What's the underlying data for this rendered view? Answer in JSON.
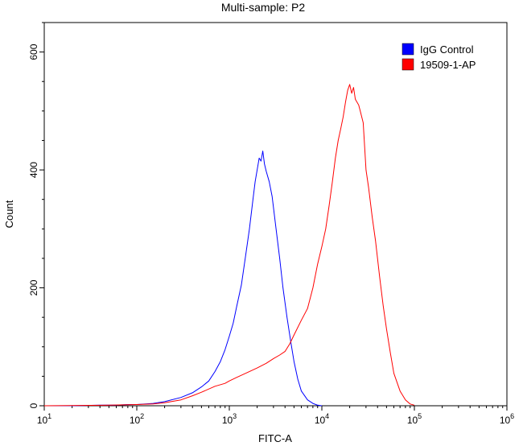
{
  "chart_data": {
    "type": "line",
    "title": "Multi-sample: P2",
    "xlabel": "FITC-A",
    "ylabel": "Count",
    "xscale": "log",
    "xlim": [
      10,
      1000000
    ],
    "ylim": [
      0,
      650
    ],
    "x_ticks": [
      {
        "base": "10",
        "exp": "1",
        "value": 10
      },
      {
        "base": "10",
        "exp": "2",
        "value": 100
      },
      {
        "base": "10",
        "exp": "3",
        "value": 1000
      },
      {
        "base": "10",
        "exp": "4",
        "value": 10000
      },
      {
        "base": "10",
        "exp": "5",
        "value": 100000
      },
      {
        "base": "10",
        "exp": "6",
        "value": 1000000
      }
    ],
    "y_ticks": [
      0,
      200,
      400,
      600
    ],
    "grid": false,
    "legend_position": "top-right",
    "series": [
      {
        "name": "IgG Control",
        "color": "#0000ff",
        "points": [
          [
            10,
            0
          ],
          [
            20,
            0
          ],
          [
            40,
            1
          ],
          [
            60,
            1
          ],
          [
            80,
            2
          ],
          [
            100,
            2
          ],
          [
            150,
            4
          ],
          [
            200,
            7
          ],
          [
            300,
            14
          ],
          [
            400,
            22
          ],
          [
            500,
            32
          ],
          [
            600,
            42
          ],
          [
            700,
            58
          ],
          [
            800,
            75
          ],
          [
            900,
            95
          ],
          [
            1000,
            118
          ],
          [
            1100,
            140
          ],
          [
            1200,
            168
          ],
          [
            1350,
            205
          ],
          [
            1500,
            255
          ],
          [
            1650,
            300
          ],
          [
            1800,
            350
          ],
          [
            1900,
            380
          ],
          [
            2000,
            400
          ],
          [
            2100,
            420
          ],
          [
            2200,
            415
          ],
          [
            2300,
            432
          ],
          [
            2400,
            410
          ],
          [
            2500,
            398
          ],
          [
            2700,
            380
          ],
          [
            2900,
            355
          ],
          [
            3200,
            300
          ],
          [
            3500,
            250
          ],
          [
            3800,
            200
          ],
          [
            4200,
            150
          ],
          [
            4600,
            110
          ],
          [
            5000,
            75
          ],
          [
            5500,
            45
          ],
          [
            6000,
            25
          ],
          [
            7000,
            10
          ],
          [
            8000,
            4
          ],
          [
            9000,
            1
          ],
          [
            10000,
            0
          ]
        ]
      },
      {
        "name": "19509-1-AP",
        "color": "#ff0000",
        "points": [
          [
            10,
            0
          ],
          [
            50,
            1
          ],
          [
            100,
            2
          ],
          [
            150,
            3
          ],
          [
            200,
            5
          ],
          [
            300,
            10
          ],
          [
            400,
            17
          ],
          [
            500,
            23
          ],
          [
            700,
            33
          ],
          [
            900,
            38
          ],
          [
            1000,
            42
          ],
          [
            1200,
            48
          ],
          [
            1500,
            55
          ],
          [
            2000,
            64
          ],
          [
            2500,
            72
          ],
          [
            3000,
            80
          ],
          [
            3500,
            86
          ],
          [
            4000,
            92
          ],
          [
            4500,
            105
          ],
          [
            5000,
            120
          ],
          [
            6000,
            145
          ],
          [
            7000,
            165
          ],
          [
            8000,
            200
          ],
          [
            9000,
            240
          ],
          [
            10000,
            270
          ],
          [
            11000,
            300
          ],
          [
            12000,
            340
          ],
          [
            13000,
            380
          ],
          [
            14000,
            420
          ],
          [
            15000,
            450
          ],
          [
            16000,
            470
          ],
          [
            17000,
            490
          ],
          [
            18000,
            515
          ],
          [
            19000,
            535
          ],
          [
            20000,
            545
          ],
          [
            21000,
            530
          ],
          [
            22000,
            540
          ],
          [
            23000,
            520
          ],
          [
            24000,
            515
          ],
          [
            25000,
            510
          ],
          [
            26000,
            500
          ],
          [
            28000,
            480
          ],
          [
            30000,
            400
          ],
          [
            32000,
            370
          ],
          [
            35000,
            320
          ],
          [
            38000,
            280
          ],
          [
            42000,
            220
          ],
          [
            46000,
            170
          ],
          [
            50000,
            130
          ],
          [
            55000,
            90
          ],
          [
            60000,
            55
          ],
          [
            70000,
            25
          ],
          [
            80000,
            10
          ],
          [
            90000,
            3
          ],
          [
            100000,
            1
          ]
        ]
      }
    ]
  }
}
